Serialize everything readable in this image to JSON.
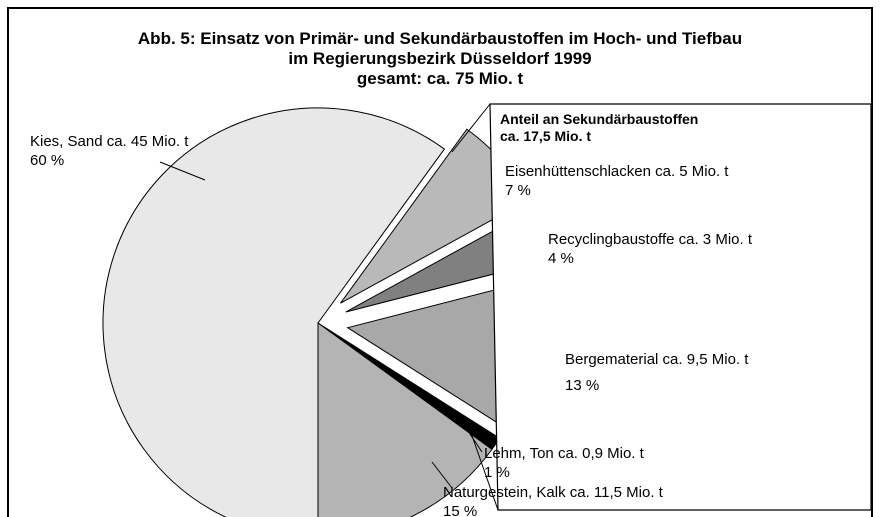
{
  "chart_data": {
    "type": "pie",
    "title": [
      "Abb. 5: Einsatz von Primär- und Sekundärbaustoffen im Hoch- und Tiefbau",
      "im Regierungsbezirk Düsseldorf 1999",
      "gesamt: ca. 75 Mio. t"
    ],
    "annotation": [
      "Anteil an Sekundärbaustoffen",
      "ca. 17,5 Mio. t"
    ],
    "categories": [
      "Kies, Sand ca. 45 Mio. t",
      "Eisenhüttenschlacken ca. 5 Mio. t",
      "Recyclingbaustoffe ca. 3 Mio. t",
      "Bergematerial ca. 9,5 Mio. t",
      "Lehm, Ton ca. 0,9 Mio. t",
      "Naturgestein, Kalk ca. 11,5 Mio. t"
    ],
    "values": [
      60,
      7,
      4,
      13,
      1,
      15
    ],
    "value_labels": [
      "60 %",
      "7 %",
      "4 %",
      "13 %",
      "1 %",
      "15 %"
    ],
    "colors": [
      "#e8e8e8",
      "#b9b9b9",
      "#808080",
      "#a8a8a8",
      "#000000",
      "#b4b4b4"
    ],
    "exploded": [
      false,
      true,
      true,
      true,
      false,
      false
    ]
  }
}
